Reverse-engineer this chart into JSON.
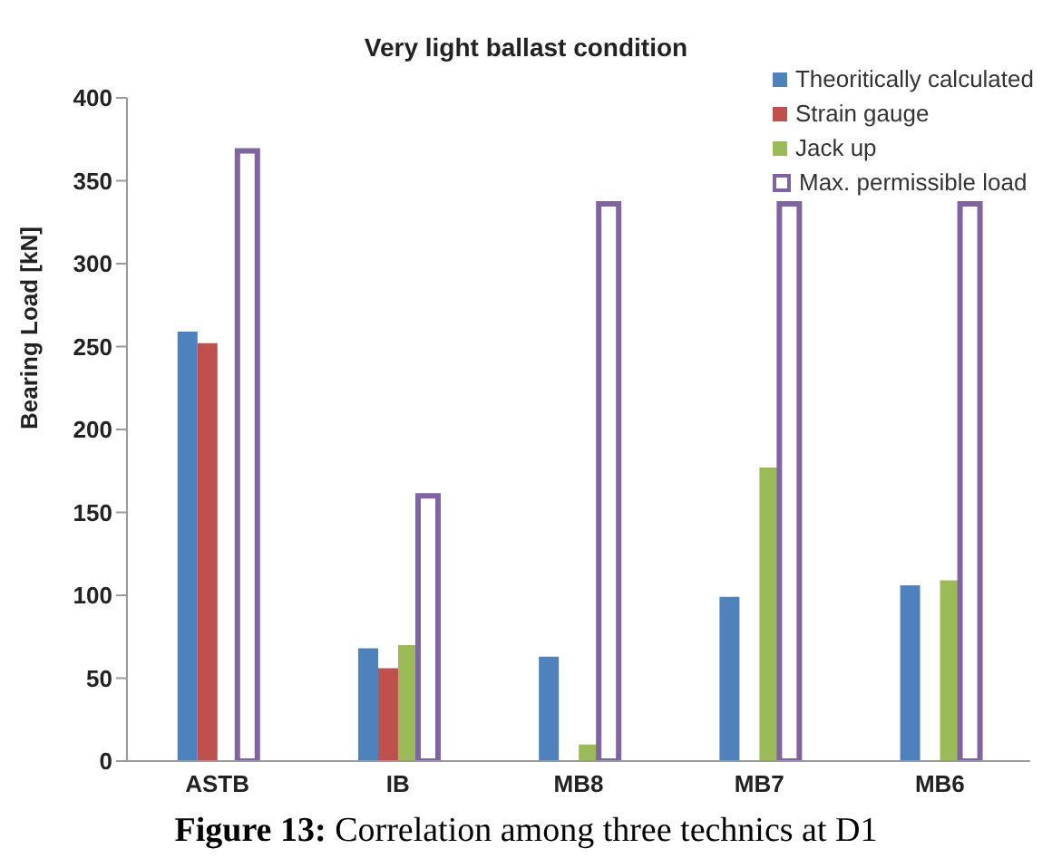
{
  "chart_data": {
    "type": "bar",
    "title": "Very light ballast condition",
    "ylabel": "Bearing Load [kN]",
    "categories": [
      "ASTB",
      "IB",
      "MB8",
      "MB7",
      "MB6"
    ],
    "series": [
      {
        "name": "Theoritically calculated",
        "color": "#4f81bd",
        "values": [
          259,
          68,
          63,
          99,
          106
        ]
      },
      {
        "name": "Strain gauge",
        "color": "#c0504d",
        "values": [
          252,
          56,
          null,
          null,
          null
        ]
      },
      {
        "name": "Jack up",
        "color": "#9bbb59",
        "values": [
          null,
          70,
          10,
          177,
          109
        ]
      },
      {
        "name": "Max. permissible load",
        "color": "#8064a2",
        "values": [
          368,
          160,
          336,
          336,
          336
        ]
      }
    ],
    "ylim": [
      0,
      400
    ],
    "yticks": [
      0,
      50,
      100,
      150,
      200,
      250,
      300,
      350,
      400
    ],
    "grid": false,
    "legend": "top right",
    "annotations": [
      "Figure 13: Correlation among three technics at D1"
    ]
  }
}
